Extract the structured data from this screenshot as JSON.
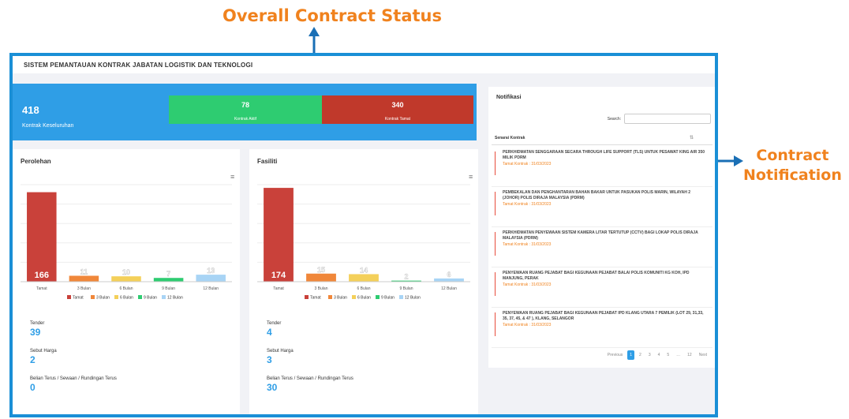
{
  "annotations": {
    "top": "Overall Contract Status",
    "right_line1": "Contract",
    "right_line2": "Notification"
  },
  "app_title": "SISTEM PEMANTAUAN KONTRAK JABATAN LOGISTIK DAN TEKNOLOGI",
  "summary": {
    "total": "418",
    "total_label": "Kontrak Keseluruhan",
    "active_value": "78",
    "active_label": "Kontrak Aktif",
    "expired_value": "340",
    "expired_label": "Kontrak Tamat"
  },
  "perolehan": {
    "title": "Perolehan",
    "tender_label": "Tender",
    "tender_value": "39",
    "sebut_label": "Sebut Harga",
    "sebut_value": "2",
    "belian_label": "Belian Terus / Sewaan / Rundingan Terus",
    "belian_value": "0"
  },
  "fasiliti": {
    "title": "Fasiliti",
    "tender_label": "Tender",
    "tender_value": "4",
    "sebut_label": "Sebut Harga",
    "sebut_value": "3",
    "belian_label": "Belian Terus / Sewaan / Rundingan Terus",
    "belian_value": "30"
  },
  "chart_data": [
    {
      "type": "bar",
      "categories": [
        "Tamat",
        "3 Bulan",
        "6 Bulan",
        "9 Bulan",
        "12 Bulan"
      ],
      "values": [
        166,
        11,
        10,
        7,
        13
      ],
      "colors": [
        "#c9413a",
        "#f0873a",
        "#f4d05a",
        "#2ecc71",
        "#a8d4f5"
      ],
      "legend": [
        "Tamat",
        "3 Bulan",
        "6 Bulan",
        "9 Bulan",
        "12 Bulan"
      ],
      "ylim": [
        0,
        180
      ]
    },
    {
      "type": "bar",
      "categories": [
        "Tamat",
        "3 Bulan",
        "6 Bulan",
        "9 Bulan",
        "12 Bulan"
      ],
      "values": [
        174,
        15,
        14,
        2,
        6
      ],
      "colors": [
        "#c9413a",
        "#f0873a",
        "#f4d05a",
        "#2ecc71",
        "#a8d4f5"
      ],
      "legend": [
        "Tamat",
        "3 Bulan",
        "6 Bulan",
        "9 Bulan",
        "12 Bulan"
      ],
      "ylim": [
        0,
        180
      ]
    }
  ],
  "notifications": {
    "title": "Notifikasi",
    "search_label": "Search:",
    "column_header": "Senarai Kontrak",
    "items": [
      {
        "title": "PERKHIDMATAN SENGGARAAN SECARA THROUGH LIFE SUPPORT (TLS) UNTUK PESAWAT KING AIR 350 MILIK PDRM",
        "date": "Tamat Kontrak : 31/03/2023"
      },
      {
        "title": "PEMBEKALAN DAN PENGHANTARAN BAHAN BAKAR UNTUK PASUKAN POLIS MARIN, WILAYAH 2 (JOHOR) POLIS DIRAJA MALAYSIA (PDRM)",
        "date": "Tamat Kontrak : 31/03/2023"
      },
      {
        "title": "PERKHIDMATAN PENYEWAAN SISTEM KAMERA LITAR TERTUTUP (CCTV) BAGI LOKAP POLIS DIRAJA MALAYSIA (PDRM)",
        "date": "Tamat Kontrak : 31/03/2023"
      },
      {
        "title": "PENYEWAAN RUANG PEJABAT BAGI KEGUNAAN PEJABAT BALAI POLIS KOMUNITI KG KOH, IPD MANJUNG, PERAK",
        "date": "Tamat Kontrak : 31/03/2023"
      },
      {
        "title": "PENYEWAAN RUANG PEJABAT BAGI KEGUNAAN PEJABAT IPD KLANG UTARA 7 PEMILIK (LOT 29, 31,33, 35, 37, 45, & 47 ), KLANG, SELANGOR",
        "date": "Tamat Kontrak : 31/03/2023"
      }
    ],
    "pager": {
      "prev": "Previous",
      "pages": [
        "1",
        "2",
        "3",
        "4",
        "5",
        "…",
        "12"
      ],
      "next": "Next"
    }
  }
}
